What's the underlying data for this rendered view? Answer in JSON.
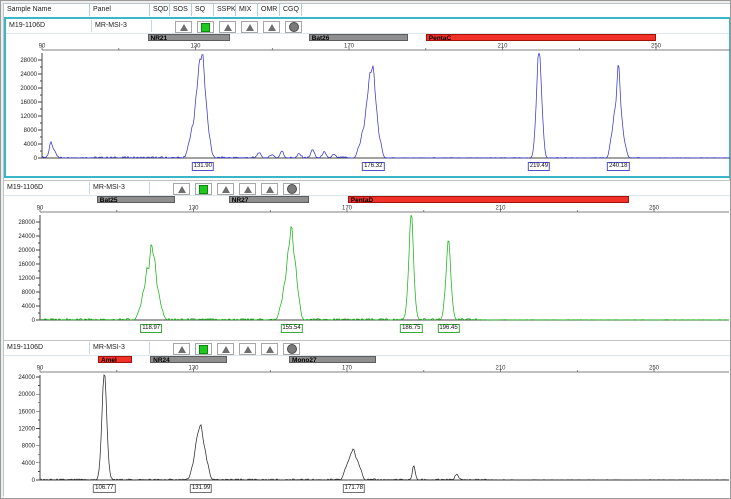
{
  "header": {
    "columns": [
      "Sample Name",
      "Panel",
      "SQD",
      "SOS",
      "SQ",
      "SSPK",
      "MIX",
      "OMR",
      "CGQ"
    ]
  },
  "rows": [
    {
      "sample_name": "M19-1106D",
      "panel": "MR-MSI-3",
      "flags": [
        "blank",
        "triangle",
        "green-square",
        "triangle",
        "triangle",
        "triangle",
        "circle"
      ]
    },
    {
      "sample_name": "M19-1106D",
      "panel": "MR-MSI-3",
      "flags": [
        "blank",
        "triangle",
        "green-square",
        "triangle",
        "triangle",
        "triangle",
        "circle"
      ]
    },
    {
      "sample_name": "M19-1106D",
      "panel": "MR-MSI-3",
      "flags": [
        "blank",
        "triangle",
        "green-square",
        "triangle",
        "triangle",
        "triangle",
        "circle"
      ]
    }
  ],
  "colors": {
    "selection": "#3ab6c9",
    "marker_gray": "#8f8f8f",
    "marker_red": "#f03228",
    "trace_blue": "#3737cf",
    "trace_green": "#17b517",
    "trace_black": "#2b2b2b",
    "flag_green": "#1ec81e"
  },
  "chart_data": [
    {
      "type": "line",
      "sample": "M19-1106D",
      "panel_name": "MR-MSI-3",
      "trace_color": "#3737cf",
      "label_color": "#5050c8",
      "x_axis": {
        "ticks": [
          90,
          130,
          170,
          210,
          250
        ],
        "minor_step": 20,
        "range": [
          90,
          270
        ],
        "unit": "bp"
      },
      "y_axis": {
        "max": 28000,
        "tick_step": 4000,
        "minor_step": 2000,
        "ticks": [
          0,
          4000,
          8000,
          12000,
          16000,
          20000,
          24000,
          28000
        ]
      },
      "markers": [
        {
          "label": "NR21",
          "style": "gray",
          "start": 117.5,
          "end": 139.0
        },
        {
          "label": "Bat26",
          "style": "gray",
          "start": 159.5,
          "end": 185.5
        },
        {
          "label": "PentaC",
          "style": "red",
          "start": 190.0,
          "end": 250.0
        }
      ],
      "peaks": [
        [
          92.3,
          4300
        ],
        [
          93.3,
          1800
        ],
        [
          128.2,
          3200
        ],
        [
          129.1,
          7500
        ],
        [
          130.1,
          14500
        ],
        [
          131.0,
          23500
        ],
        [
          131.9,
          26000
        ],
        [
          132.8,
          13000
        ],
        [
          133.7,
          4500
        ],
        [
          146.5,
          1400
        ],
        [
          150.0,
          900
        ],
        [
          152.5,
          1900
        ],
        [
          157.0,
          1100
        ],
        [
          160.5,
          2400
        ],
        [
          163.5,
          1600
        ],
        [
          166.0,
          900
        ],
        [
          172.5,
          2800
        ],
        [
          173.5,
          6800
        ],
        [
          174.5,
          12500
        ],
        [
          175.4,
          20500
        ],
        [
          176.3,
          23000
        ],
        [
          177.2,
          11500
        ],
        [
          178.2,
          4200
        ],
        [
          218.6,
          5500
        ],
        [
          219.5,
          30500,
          0.5
        ],
        [
          220.4,
          7500
        ],
        [
          238.3,
          4800
        ],
        [
          239.2,
          11500
        ],
        [
          240.2,
          25500
        ],
        [
          241.1,
          8800
        ],
        [
          242.0,
          3000
        ]
      ],
      "noise": [
        [
          90,
          170,
          420
        ],
        [
          170,
          252,
          140
        ],
        [
          252,
          270,
          110
        ]
      ],
      "peak_labels": [
        {
          "bp": 131.9,
          "text": "131.90"
        },
        {
          "bp": 176.32,
          "text": "176.32"
        },
        {
          "bp": 219.49,
          "text": "219.49"
        },
        {
          "bp": 240.18,
          "text": "240.18"
        }
      ]
    },
    {
      "type": "line",
      "sample": "M19-1106D",
      "panel_name": "MR-MSI-3",
      "trace_color": "#17b517",
      "label_color": "#3aa83a",
      "x_axis": {
        "ticks": [
          90,
          130,
          170,
          210,
          250
        ],
        "minor_step": 20,
        "range": [
          90,
          270
        ],
        "unit": "bp"
      },
      "y_axis": {
        "max": 28000,
        "tick_step": 4000,
        "minor_step": 2000,
        "ticks": [
          0,
          4000,
          8000,
          12000,
          16000,
          20000,
          24000,
          28000
        ]
      },
      "markers": [
        {
          "label": "Bat25",
          "style": "gray",
          "start": 104.8,
          "end": 125.2
        },
        {
          "label": "NR27",
          "style": "gray",
          "start": 139.2,
          "end": 160.2
        },
        {
          "label": "PentaD",
          "style": "red",
          "start": 170.2,
          "end": 243.5
        }
      ],
      "peaks": [
        [
          115.9,
          2800
        ],
        [
          116.9,
          7200
        ],
        [
          117.9,
          13800
        ],
        [
          118.97,
          19800
        ],
        [
          119.9,
          15200
        ],
        [
          120.9,
          6800
        ],
        [
          121.8,
          2400
        ],
        [
          152.6,
          3200
        ],
        [
          153.6,
          8800
        ],
        [
          154.6,
          16800
        ],
        [
          155.54,
          24600
        ],
        [
          156.5,
          14500
        ],
        [
          157.4,
          5600
        ],
        [
          185.8,
          4800
        ],
        [
          186.75,
          30500,
          0.5
        ],
        [
          187.7,
          3800
        ],
        [
          195.5,
          4200
        ],
        [
          196.45,
          22500,
          0.5
        ],
        [
          197.4,
          3200
        ]
      ],
      "noise": [
        [
          90,
          205,
          460
        ],
        [
          205,
          270,
          130
        ]
      ],
      "peak_labels": [
        {
          "bp": 118.97,
          "text": "118.97"
        },
        {
          "bp": 155.54,
          "text": "155.54"
        },
        {
          "bp": 186.75,
          "text": "186.75"
        },
        {
          "bp": 196.45,
          "text": "196.45"
        }
      ]
    },
    {
      "type": "line",
      "sample": "M19-1106D",
      "panel_name": "MR-MSI-3",
      "trace_color": "#2b2b2b",
      "label_color": "#707070",
      "x_axis": {
        "ticks": [
          90,
          130,
          170,
          210,
          250
        ],
        "minor_step": 20,
        "range": [
          90,
          270
        ],
        "unit": "bp"
      },
      "y_axis": {
        "max": 24000,
        "tick_step": 4000,
        "minor_step": 2000,
        "ticks": [
          0,
          4000,
          8000,
          12000,
          16000,
          20000,
          24000
        ]
      },
      "markers": [
        {
          "label": "Amel",
          "style": "red",
          "start": 105.1,
          "end": 114.0
        },
        {
          "label": "NR24",
          "style": "gray",
          "start": 118.7,
          "end": 138.7
        },
        {
          "label": "Mono27",
          "style": "gray",
          "start": 154.9,
          "end": 177.6
        }
      ],
      "peaks": [
        [
          105.9,
          2600
        ],
        [
          106.77,
          24800,
          0.55
        ],
        [
          107.7,
          2200
        ],
        [
          129.6,
          2400
        ],
        [
          130.5,
          5400
        ],
        [
          131.2,
          7900
        ],
        [
          131.99,
          10800
        ],
        [
          132.9,
          6300
        ],
        [
          133.8,
          2800
        ],
        [
          169.4,
          1700
        ],
        [
          170.2,
          3100
        ],
        [
          171.0,
          4500
        ],
        [
          171.78,
          5800
        ],
        [
          172.7,
          3900
        ],
        [
          173.6,
          2100
        ],
        [
          187.4,
          3300,
          0.35
        ],
        [
          198.6,
          1300
        ]
      ],
      "noise": [
        [
          90,
          208,
          260
        ],
        [
          208,
          270,
          90
        ]
      ],
      "peak_labels": [
        {
          "bp": 106.77,
          "text": "106.77"
        },
        {
          "bp": 131.99,
          "text": "131.99"
        },
        {
          "bp": 171.78,
          "text": "171.78"
        }
      ]
    }
  ]
}
